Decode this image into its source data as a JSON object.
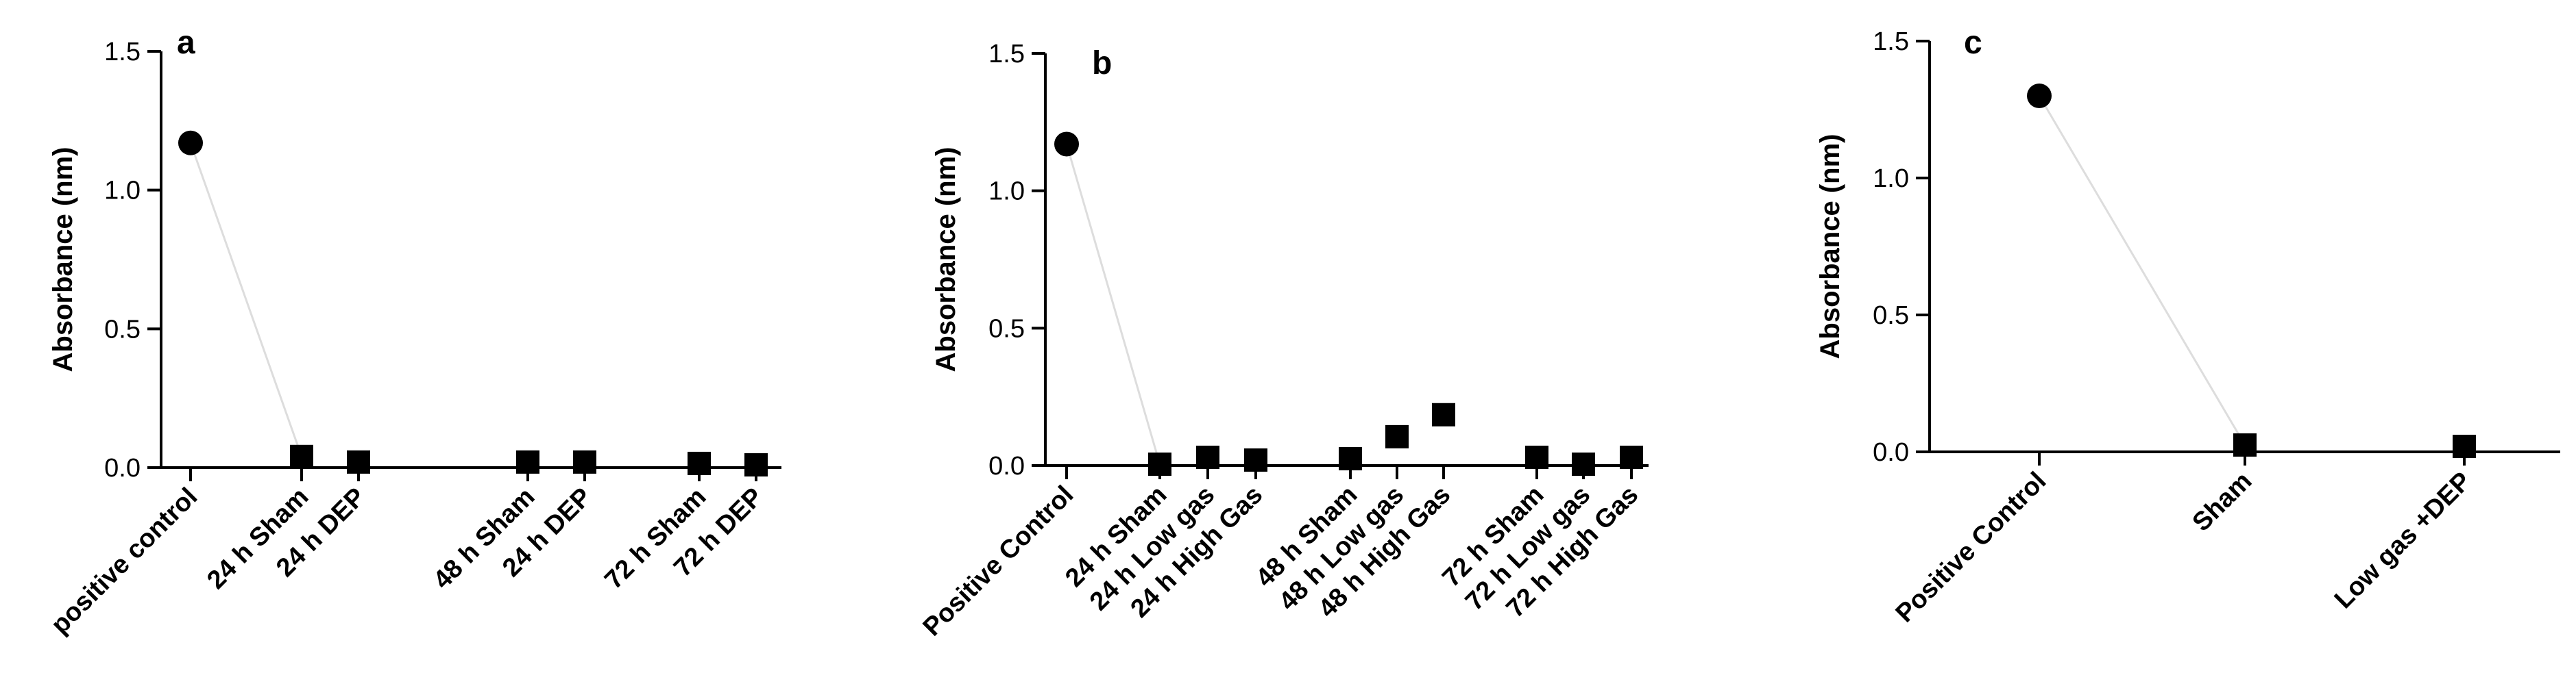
{
  "chart_data": [
    {
      "type": "scatter",
      "panel": "a",
      "ylabel": "Absorbance (nm)",
      "xlabel": "",
      "ylim": [
        0,
        1.5
      ],
      "yticks": [
        "0.0",
        "0.5",
        "1.0",
        "1.5"
      ],
      "categories": [
        "positive control",
        "24 h Sham",
        "24 h DEP",
        "48 h Sham",
        "24 h DEP",
        "72 h Sham",
        "72 h DEP"
      ],
      "values": [
        1.17,
        0.04,
        0.02,
        0.02,
        0.02,
        0.015,
        0.01
      ],
      "markers": [
        "circle",
        "square",
        "square",
        "square",
        "square",
        "square",
        "square"
      ],
      "groups": [
        0,
        1,
        1,
        2,
        2,
        3,
        3
      ],
      "color": "#000000",
      "connector_color": "#dddddd"
    },
    {
      "type": "scatter",
      "panel": "b",
      "ylabel": "Absorbance (nm)",
      "xlabel": "",
      "ylim": [
        0,
        1.5
      ],
      "yticks": [
        "0.0",
        "0.5",
        "1.0",
        "1.5"
      ],
      "categories": [
        "Positive Control",
        "24 h Sham",
        "24 h Low gas",
        "24 h High Gas",
        "48 h Sham",
        "48 h Low gas",
        "48 h High Gas",
        "72 h Sham",
        "72 h Low gas",
        "72 h High Gas"
      ],
      "values": [
        1.17,
        0.005,
        0.03,
        0.02,
        0.025,
        0.105,
        0.185,
        0.03,
        0.005,
        0.03
      ],
      "markers": [
        "circle",
        "square",
        "square",
        "square",
        "square",
        "square",
        "square",
        "square",
        "square",
        "square"
      ],
      "groups": [
        0,
        1,
        1,
        1,
        2,
        2,
        2,
        3,
        3,
        3
      ],
      "color": "#000000",
      "connector_color": "#dddddd"
    },
    {
      "type": "scatter",
      "panel": "c",
      "ylabel": "Absorbance (nm)",
      "xlabel": "",
      "ylim": [
        0,
        1.5
      ],
      "yticks": [
        "0.0",
        "0.5",
        "1.0",
        "1.5"
      ],
      "categories": [
        "Positive Control",
        "Sham",
        "Low gas +DEP"
      ],
      "values": [
        1.3,
        0.025,
        0.02
      ],
      "markers": [
        "circle",
        "square",
        "square"
      ],
      "groups": [
        0,
        1,
        2
      ],
      "color": "#000000",
      "connector_color": "#dddddd"
    }
  ]
}
